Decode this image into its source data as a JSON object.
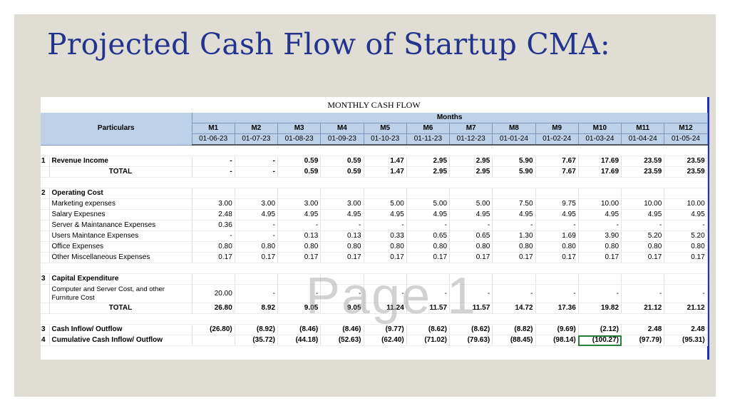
{
  "title": "Projected Cash Flow of Startup CMA:",
  "sheet": {
    "heading": "MONTHLY CASH FLOW",
    "watermark": "Page 1",
    "particulars_label": "Particulars",
    "months_label": "Months",
    "months": [
      "M1",
      "M2",
      "M3",
      "M4",
      "M5",
      "M6",
      "M7",
      "M8",
      "M9",
      "M10",
      "M11",
      "M12"
    ],
    "dates": [
      "01-06-23",
      "01-07-23",
      "01-08-23",
      "01-09-23",
      "01-10-23",
      "01-11-23",
      "01-12-23",
      "01-01-24",
      "01-02-24",
      "01-03-24",
      "01-04-24",
      "01-05-24"
    ],
    "rows": [
      {
        "kind": "blank"
      },
      {
        "kind": "item",
        "sn": "1",
        "label": "Revenue Income",
        "bold": true,
        "boxtop": true,
        "values": [
          "-",
          "-",
          "0.59",
          "0.59",
          "1.47",
          "2.95",
          "2.95",
          "5.90",
          "7.67",
          "17.69",
          "23.59",
          "23.59"
        ]
      },
      {
        "kind": "total",
        "sn": "",
        "label": "TOTAL",
        "values": [
          "-",
          "-",
          "0.59",
          "0.59",
          "1.47",
          "2.95",
          "2.95",
          "5.90",
          "7.67",
          "17.69",
          "23.59",
          "23.59"
        ]
      },
      {
        "kind": "blank"
      },
      {
        "kind": "item",
        "sn": "2",
        "label": "Operating Cost",
        "bold": true,
        "values": [
          "",
          "",
          "",
          "",
          "",
          "",
          "",
          "",
          "",
          "",
          "",
          ""
        ]
      },
      {
        "kind": "item",
        "sn": "",
        "label": "Marketing expenses",
        "values": [
          "3.00",
          "3.00",
          "3.00",
          "3.00",
          "5.00",
          "5.00",
          "5.00",
          "7.50",
          "9.75",
          "10.00",
          "10.00",
          "10.00"
        ]
      },
      {
        "kind": "item",
        "sn": "",
        "label": "Salary Expesnes",
        "values": [
          "2.48",
          "4.95",
          "4.95",
          "4.95",
          "4.95",
          "4.95",
          "4.95",
          "4.95",
          "4.95",
          "4.95",
          "4.95",
          "4.95"
        ]
      },
      {
        "kind": "item",
        "sn": "",
        "label": "Server & Maintanance Expenses",
        "values": [
          "0.36",
          "-",
          "-",
          "-",
          "-",
          "-",
          "-",
          "-",
          "-",
          "-",
          "-",
          "-"
        ]
      },
      {
        "kind": "item",
        "sn": "",
        "label": "Users Maintance Expenses",
        "values": [
          "-",
          "-",
          "0.13",
          "0.13",
          "0.33",
          "0.65",
          "0.65",
          "1.30",
          "1.69",
          "3.90",
          "5.20",
          "5.20"
        ]
      },
      {
        "kind": "item",
        "sn": "",
        "label": "Office Expenses",
        "values": [
          "0.80",
          "0.80",
          "0.80",
          "0.80",
          "0.80",
          "0.80",
          "0.80",
          "0.80",
          "0.80",
          "0.80",
          "0.80",
          "0.80"
        ]
      },
      {
        "kind": "item",
        "sn": "",
        "label": "Other Miscellaneous Expenses",
        "values": [
          "0.17",
          "0.17",
          "0.17",
          "0.17",
          "0.17",
          "0.17",
          "0.17",
          "0.17",
          "0.17",
          "0.17",
          "0.17",
          "0.17"
        ]
      },
      {
        "kind": "blank"
      },
      {
        "kind": "item",
        "sn": "3",
        "label": "Capital Expenditure",
        "bold": true,
        "values": [
          "",
          "",
          "",
          "",
          "",
          "",
          "",
          "",
          "",
          "",
          "",
          ""
        ]
      },
      {
        "kind": "item",
        "sn": "",
        "label": "Computer and Server Cost, and other Furniture Cost",
        "wrap": true,
        "values": [
          "20.00",
          "-",
          "-",
          "-",
          "-",
          "-",
          "-",
          "-",
          "-",
          "-",
          "-",
          "-"
        ]
      },
      {
        "kind": "total",
        "sn": "",
        "label": "TOTAL",
        "values": [
          "26.80",
          "8.92",
          "9.05",
          "9.05",
          "11.24",
          "11.57",
          "11.57",
          "14.72",
          "17.36",
          "19.82",
          "21.12",
          "21.12"
        ]
      },
      {
        "kind": "blank"
      },
      {
        "kind": "item",
        "sn": "3",
        "label": "Cash Inflow/ Outflow",
        "bold": true,
        "values": [
          "(26.80)",
          "(8.92)",
          "(8.46)",
          "(8.46)",
          "(9.77)",
          "(8.62)",
          "(8.62)",
          "(8.82)",
          "(9.69)",
          "(2.12)",
          "2.48",
          "2.48"
        ]
      },
      {
        "kind": "item",
        "sn": "4",
        "label": "Cumulative Cash Inflow/ Outflow",
        "bold": true,
        "boxtop": true,
        "values": [
          "",
          "(35.72)",
          "(44.18)",
          "(52.63)",
          "(62.40)",
          "(71.02)",
          "(79.63)",
          "(88.45)",
          "(98.14)",
          "(100.27)",
          "(97.79)",
          "(95.31)"
        ]
      }
    ]
  }
}
